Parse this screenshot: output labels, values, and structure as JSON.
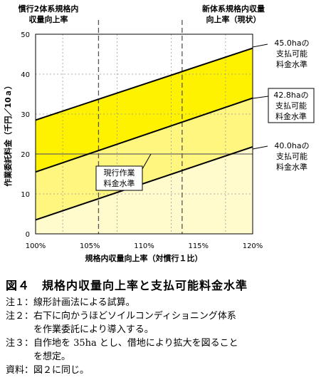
{
  "chart_data": {
    "type": "line",
    "xlabel": "規格内収量向上率（対慣行１比）",
    "ylabel": "作業委託料金（千円／10ａ）",
    "x_ticks": [
      "100%",
      "105%",
      "110%",
      "115%",
      "120%"
    ],
    "y_ticks": [
      "0",
      "10",
      "20",
      "30",
      "40",
      "50"
    ],
    "xlim": [
      100,
      120
    ],
    "ylim": [
      0,
      50
    ],
    "series": [
      {
        "name": "45.0haの支払可能料金水準",
        "x": [
          100,
          120
        ],
        "y": [
          28.5,
          46.5
        ]
      },
      {
        "name": "42.8haの支払可能料金水準",
        "x": [
          100,
          120
        ],
        "y": [
          15.5,
          34.0
        ]
      },
      {
        "name": "40.0haの支払可能料金水準",
        "x": [
          100,
          120
        ],
        "y": [
          3.5,
          21.8
        ]
      }
    ],
    "reference_lines": {
      "current_fee": 20,
      "conventional_2_rate": 105.8,
      "new_system_rate": 113.5
    },
    "annotations": {
      "conventional_2": [
        "慣行2体系規格内",
        "収量向上率"
      ],
      "new_system": [
        "新体系規格内収量",
        "向上率（現状）"
      ],
      "current_fee": [
        "現行作業",
        "料金水準"
      ],
      "label_45": [
        "45.0haの",
        "支払可能",
        "料金水準"
      ],
      "label_428": [
        "42.8haの",
        "支払可能",
        "料金水準"
      ],
      "label_40": [
        "40.0haの",
        "支払可能",
        "料金水準"
      ]
    },
    "colors": {
      "fill_top": "#FFF200",
      "fill_mid": "#FFF680",
      "fill_low": "#FFFBCC",
      "line": "#000000",
      "grid": "#999999"
    }
  },
  "figure": {
    "title": "図４　規格内収量向上率と支払可能料金水準",
    "notes": [
      "注１：線形計画法による試算。",
      "注２：右下に向かうほどソイルコンディショニング体系",
      "　　　を作業委託により導入する。",
      "注３：自作地を 35ha とし、借地により拡大を図ること",
      "　　　を想定。",
      "資料：図２に同じ。"
    ]
  }
}
